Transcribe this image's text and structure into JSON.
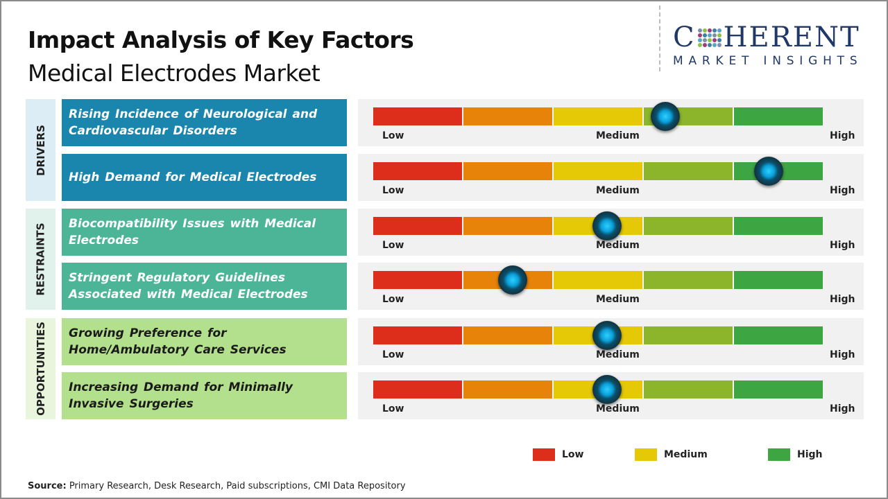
{
  "title": "Impact Analysis of Key Factors",
  "subtitle": "Medical Electrodes Market",
  "logo": {
    "main_left": "C",
    "main_right": "HERENT",
    "tagline": "MARKET INSIGHTS"
  },
  "colors": {
    "low": "#dc2e1a",
    "low_mid": "#e8830a",
    "medium": "#e6c906",
    "mid_high": "#8db52c",
    "high": "#3ea543",
    "drivers": "#1a85ad",
    "restraints": "#4db597",
    "opportunities": "#b3e08c",
    "knob": "#0a9fd8"
  },
  "categories": [
    {
      "label": "DRIVERS",
      "bg": "#dcedf5"
    },
    {
      "label": "RESTRAINTS",
      "bg": "#e1f1eb"
    },
    {
      "label": "OPPORTUNITIES",
      "bg": "#eaf5de"
    }
  ],
  "chart_data": {
    "type": "table",
    "scale": [
      "Low",
      "Medium",
      "High"
    ],
    "factors": [
      {
        "category": "DRIVERS",
        "label": "Rising Incidence of Neurological and Cardiovascular Disorders",
        "impact": 0.65
      },
      {
        "category": "DRIVERS",
        "label": "High Demand for Medical Electrodes",
        "impact": 0.88
      },
      {
        "category": "RESTRAINTS",
        "label": "Biocompatibility Issues with Medical Electrodes",
        "impact": 0.52
      },
      {
        "category": "RESTRAINTS",
        "label": "Stringent Regulatory Guidelines Associated with Medical Electrodes",
        "impact": 0.31
      },
      {
        "category": "OPPORTUNITIES",
        "label": "Growing Preference for Home/Ambulatory Care Services",
        "impact": 0.52
      },
      {
        "category": "OPPORTUNITIES",
        "label": "Increasing Demand for Minimally Invasive Surgeries",
        "impact": 0.52
      }
    ],
    "legend": [
      "Low",
      "Medium",
      "High"
    ]
  },
  "source": {
    "label": "Source:",
    "text": " Primary Research, Desk Research, Paid subscriptions, CMI Data Repository"
  }
}
